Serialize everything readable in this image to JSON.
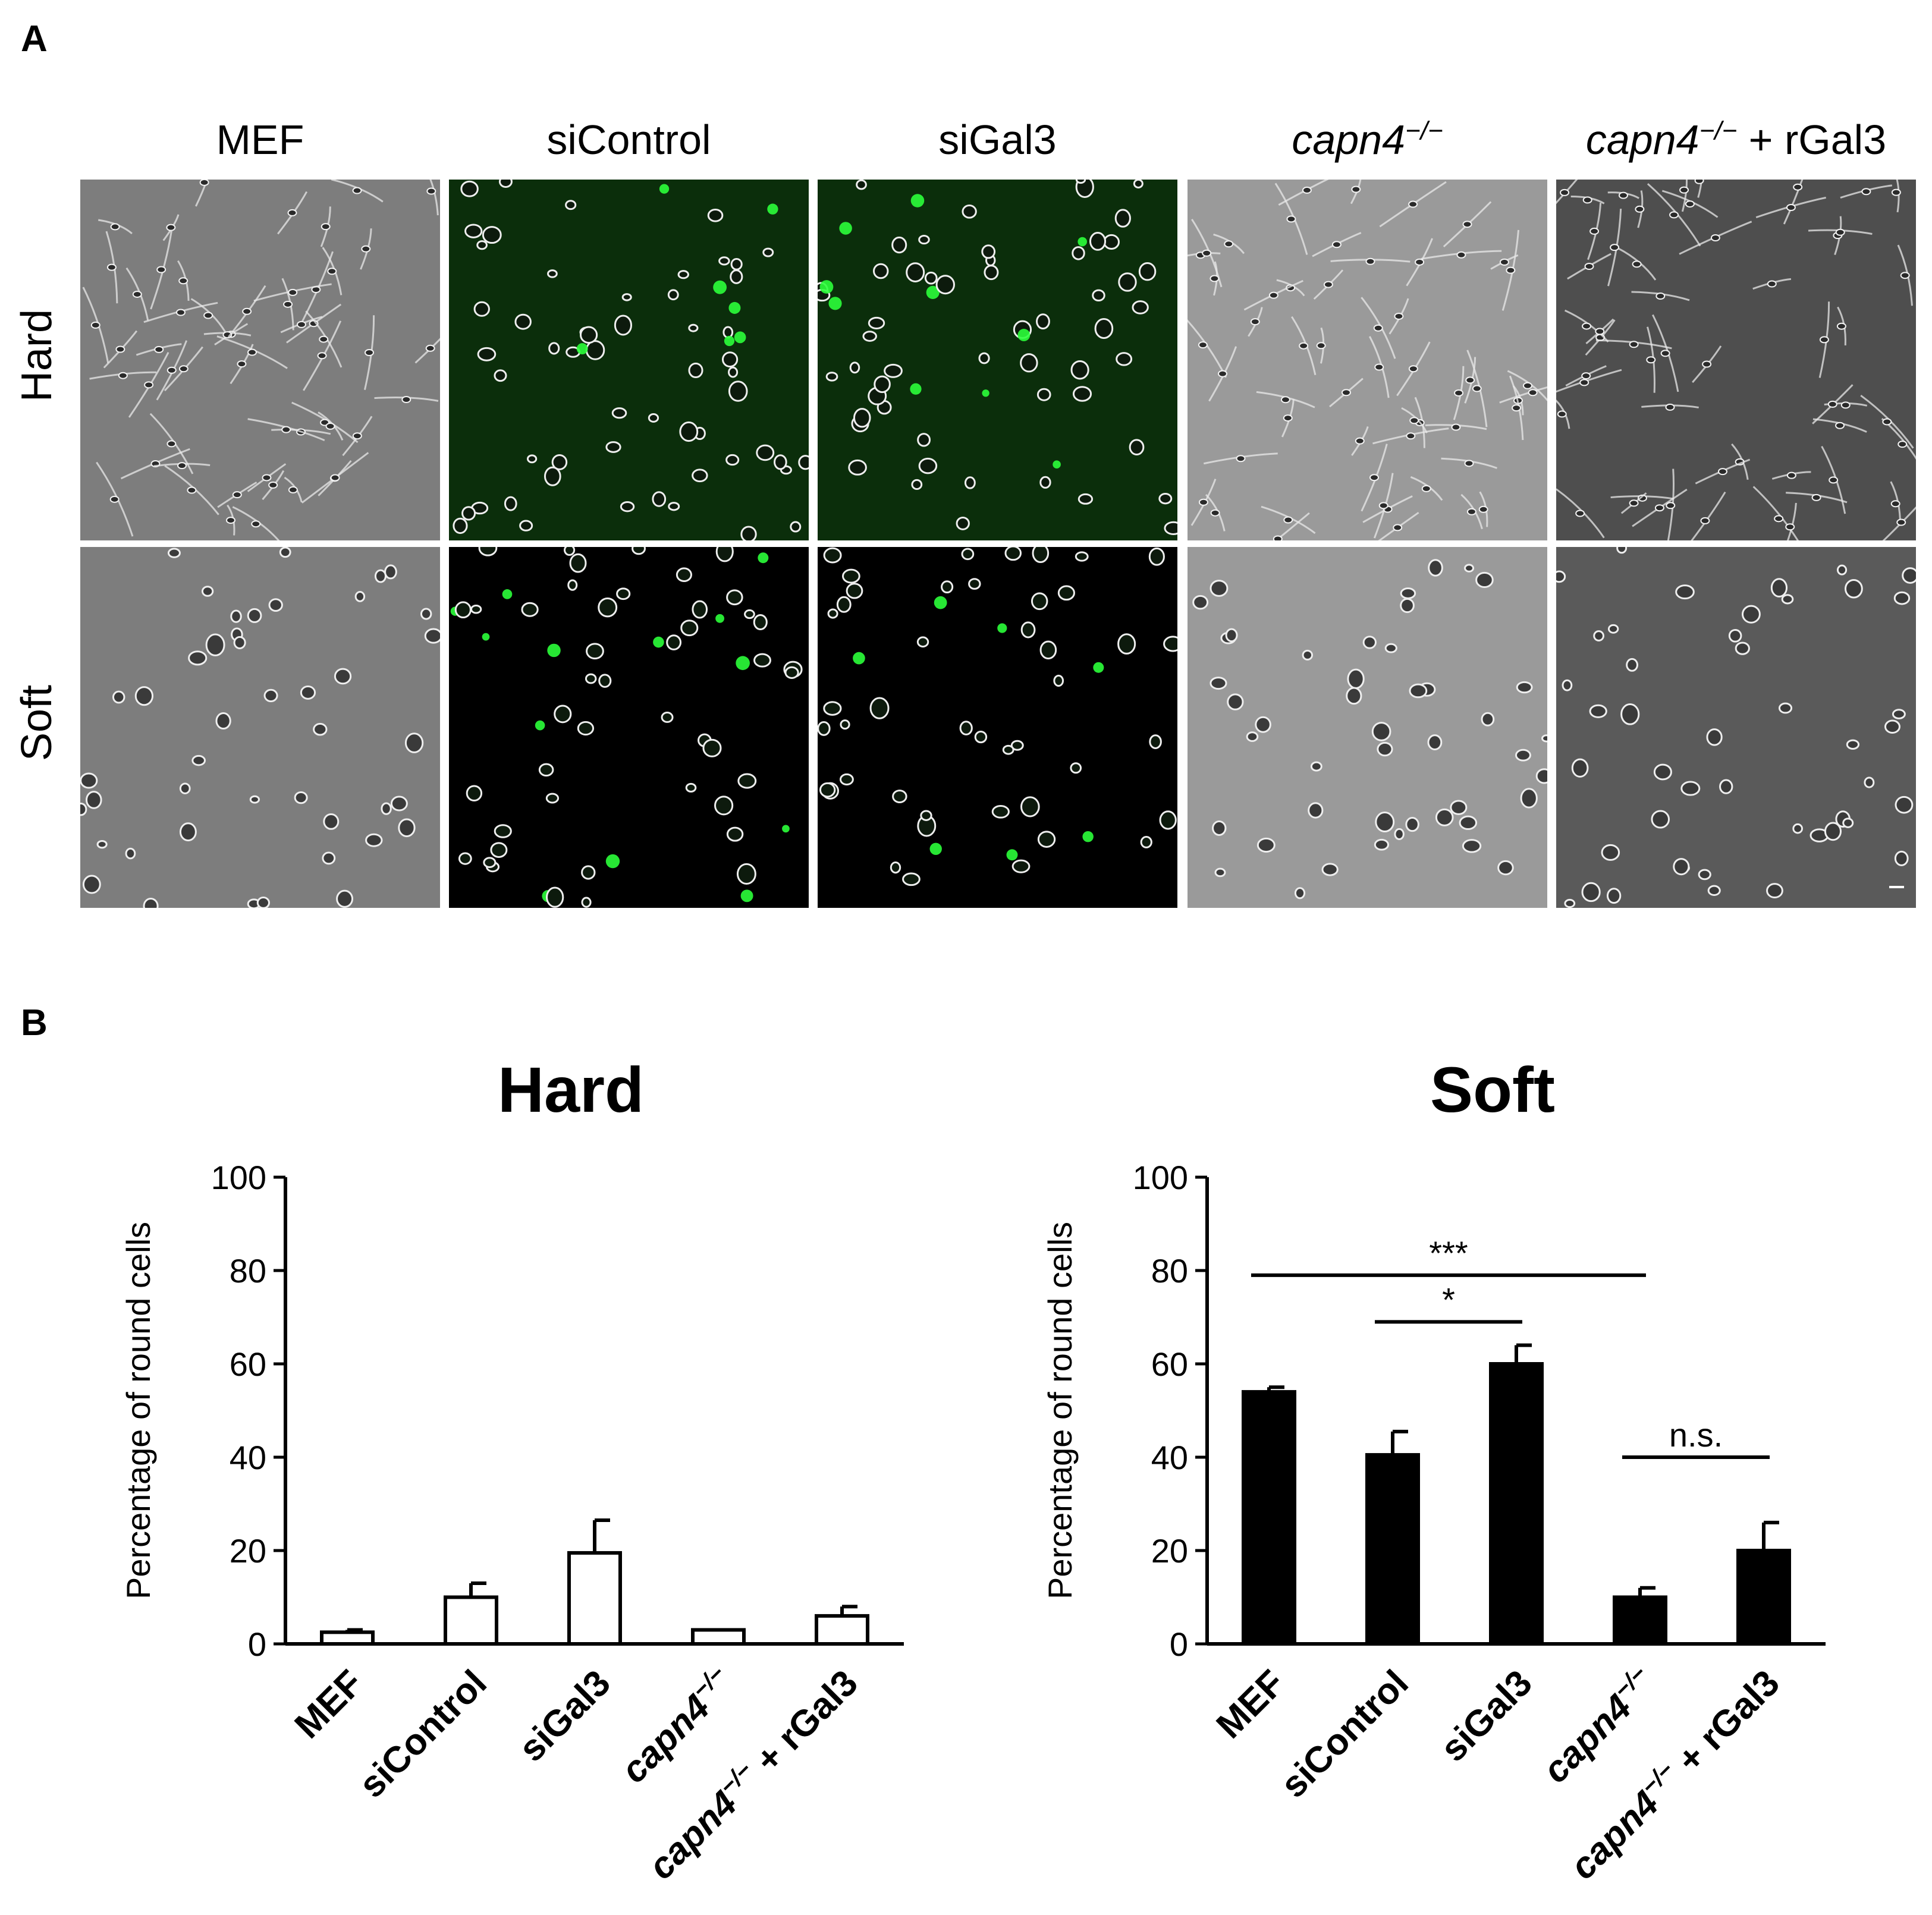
{
  "panel_a": {
    "letter": "A",
    "columns": [
      {
        "name": "MEF",
        "italic": "",
        "sup": "",
        "suffix": ""
      },
      {
        "name": "siControl",
        "italic": "",
        "sup": "",
        "suffix": ""
      },
      {
        "name": "siGal3",
        "italic": "",
        "sup": "",
        "suffix": ""
      },
      {
        "name": "",
        "italic": "capn4",
        "sup": "−/−",
        "suffix": ""
      },
      {
        "name": "",
        "italic": "capn4",
        "sup": "−/−",
        "suffix": " + rGal3"
      }
    ],
    "rows": [
      "Hard",
      "Soft"
    ],
    "colors": {
      "phase_light": "#9a9a9a",
      "phase_dark": "#555555",
      "fluor_hard": "#0b2e0b",
      "fluor_soft": "#000000",
      "green": "#2bff3a"
    }
  },
  "panel_b": {
    "letter": "B"
  },
  "chart_data": [
    {
      "type": "bar",
      "title": "Hard",
      "ylabel": "Percentage of round cells",
      "ylim": [
        0,
        100
      ],
      "yticks": [
        "0",
        "20",
        "40",
        "60",
        "80",
        "100"
      ],
      "categories": [
        {
          "text": "MEF",
          "italic": "",
          "sup": "",
          "suffix": ""
        },
        {
          "text": "siControl",
          "italic": "",
          "sup": "",
          "suffix": ""
        },
        {
          "text": "siGal3",
          "italic": "",
          "sup": "",
          "suffix": ""
        },
        {
          "text": "",
          "italic": "capn4",
          "sup": "−/−",
          "suffix": ""
        },
        {
          "text": "",
          "italic": "capn4",
          "sup": "−/−",
          "suffix": " + rGal3"
        }
      ],
      "values": [
        2.5,
        10,
        19.5,
        3,
        6
      ],
      "errors": [
        0.5,
        3,
        7,
        0,
        2
      ],
      "bar_fill": "#ffffff",
      "annotations": []
    },
    {
      "type": "bar",
      "title": "Soft",
      "ylabel": "Percentage of round cells",
      "ylim": [
        0,
        100
      ],
      "yticks": [
        "0",
        "20",
        "40",
        "60",
        "80",
        "100"
      ],
      "categories": [
        {
          "text": "MEF",
          "italic": "",
          "sup": "",
          "suffix": ""
        },
        {
          "text": "siControl",
          "italic": "",
          "sup": "",
          "suffix": ""
        },
        {
          "text": "siGal3",
          "italic": "",
          "sup": "",
          "suffix": ""
        },
        {
          "text": "",
          "italic": "capn4",
          "sup": "−/−",
          "suffix": ""
        },
        {
          "text": "",
          "italic": "capn4",
          "sup": "−/−",
          "suffix": " + rGal3"
        }
      ],
      "values": [
        54,
        40.5,
        60,
        10,
        20
      ],
      "errors": [
        1,
        5,
        4,
        2,
        6
      ],
      "bar_fill": "#000000",
      "annotations": [
        {
          "from": 0,
          "to": 3,
          "y": 79,
          "label": "***"
        },
        {
          "from": 1,
          "to": 2,
          "y": 69,
          "label": "*"
        },
        {
          "from": 3,
          "to": 4,
          "y": 40,
          "label": "n.s."
        }
      ]
    }
  ]
}
